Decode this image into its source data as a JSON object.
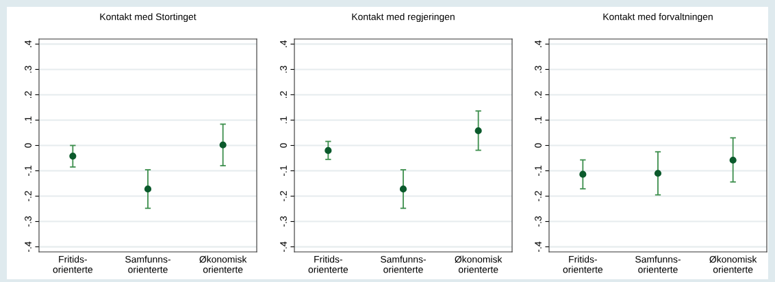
{
  "chart_data": [
    {
      "type": "scatter",
      "title": "Kontakt med Stortinget",
      "categories": [
        "Fritids-\norienterte",
        "Samfunns-\norienterte",
        "Økonomisk\norienterte"
      ],
      "series": [
        {
          "color": "#0b5a2c",
          "values": [
            -0.042,
            -0.172,
            0.002
          ],
          "errors": [
            [
              -0.085,
              0.0
            ],
            [
              -0.248,
              -0.096
            ],
            [
              -0.08,
              0.084
            ]
          ]
        }
      ],
      "ylim": [
        -0.42,
        0.42
      ],
      "yticks": [
        {
          "value": -0.4,
          "label": "-.4"
        },
        {
          "value": -0.3,
          "label": "-.3"
        },
        {
          "value": -0.2,
          "label": "-.2"
        },
        {
          "value": -0.1,
          "label": "-.1"
        },
        0,
        {
          "value": 0.1,
          "label": ".1"
        },
        {
          "value": 0.2,
          "label": ".2"
        },
        {
          "value": 0.3,
          "label": ".3"
        },
        {
          "value": 0.4,
          "label": ".4"
        }
      ],
      "grid": "y",
      "marker": "circle"
    },
    {
      "type": "scatter",
      "title": "Kontakt med regjeringen",
      "categories": [
        "Fritids-\norienterte",
        "Samfunns-\norienterte",
        "Økonomisk\norienterte"
      ],
      "series": [
        {
          "color": "#0b5a2c",
          "values": [
            -0.02,
            -0.172,
            0.058
          ],
          "errors": [
            [
              -0.055,
              0.016
            ],
            [
              -0.248,
              -0.096
            ],
            [
              -0.019,
              0.136
            ]
          ]
        }
      ],
      "ylim": [
        -0.42,
        0.42
      ],
      "yticks": [
        {
          "value": -0.4,
          "label": "-.4"
        },
        {
          "value": -0.3,
          "label": "-.3"
        },
        {
          "value": -0.2,
          "label": "-.2"
        },
        {
          "value": -0.1,
          "label": "-.1"
        },
        0,
        {
          "value": 0.1,
          "label": ".1"
        },
        {
          "value": 0.2,
          "label": ".2"
        },
        {
          "value": 0.3,
          "label": ".3"
        },
        {
          "value": 0.4,
          "label": ".4"
        }
      ],
      "grid": "y",
      "marker": "circle"
    },
    {
      "type": "scatter",
      "title": "Kontakt med forvaltningen",
      "categories": [
        "Fritids-\norienterte",
        "Samfunns-\norienterte",
        "Økonomisk\norienterte"
      ],
      "series": [
        {
          "color": "#0b5a2c",
          "values": [
            -0.114,
            -0.11,
            -0.058
          ],
          "errors": [
            [
              -0.171,
              -0.057
            ],
            [
              -0.195,
              -0.025
            ],
            [
              -0.144,
              0.03
            ]
          ]
        }
      ],
      "ylim": [
        -0.42,
        0.42
      ],
      "yticks": [
        {
          "value": -0.4,
          "label": "-.4"
        },
        {
          "value": -0.3,
          "label": "-.3"
        },
        {
          "value": -0.2,
          "label": "-.2"
        },
        {
          "value": -0.1,
          "label": "-.1"
        },
        0,
        {
          "value": 0.1,
          "label": ".1"
        },
        {
          "value": 0.2,
          "label": ".2"
        },
        {
          "value": 0.3,
          "label": ".3"
        },
        {
          "value": 0.4,
          "label": ".4"
        }
      ],
      "grid": "y",
      "marker": "circle"
    }
  ]
}
